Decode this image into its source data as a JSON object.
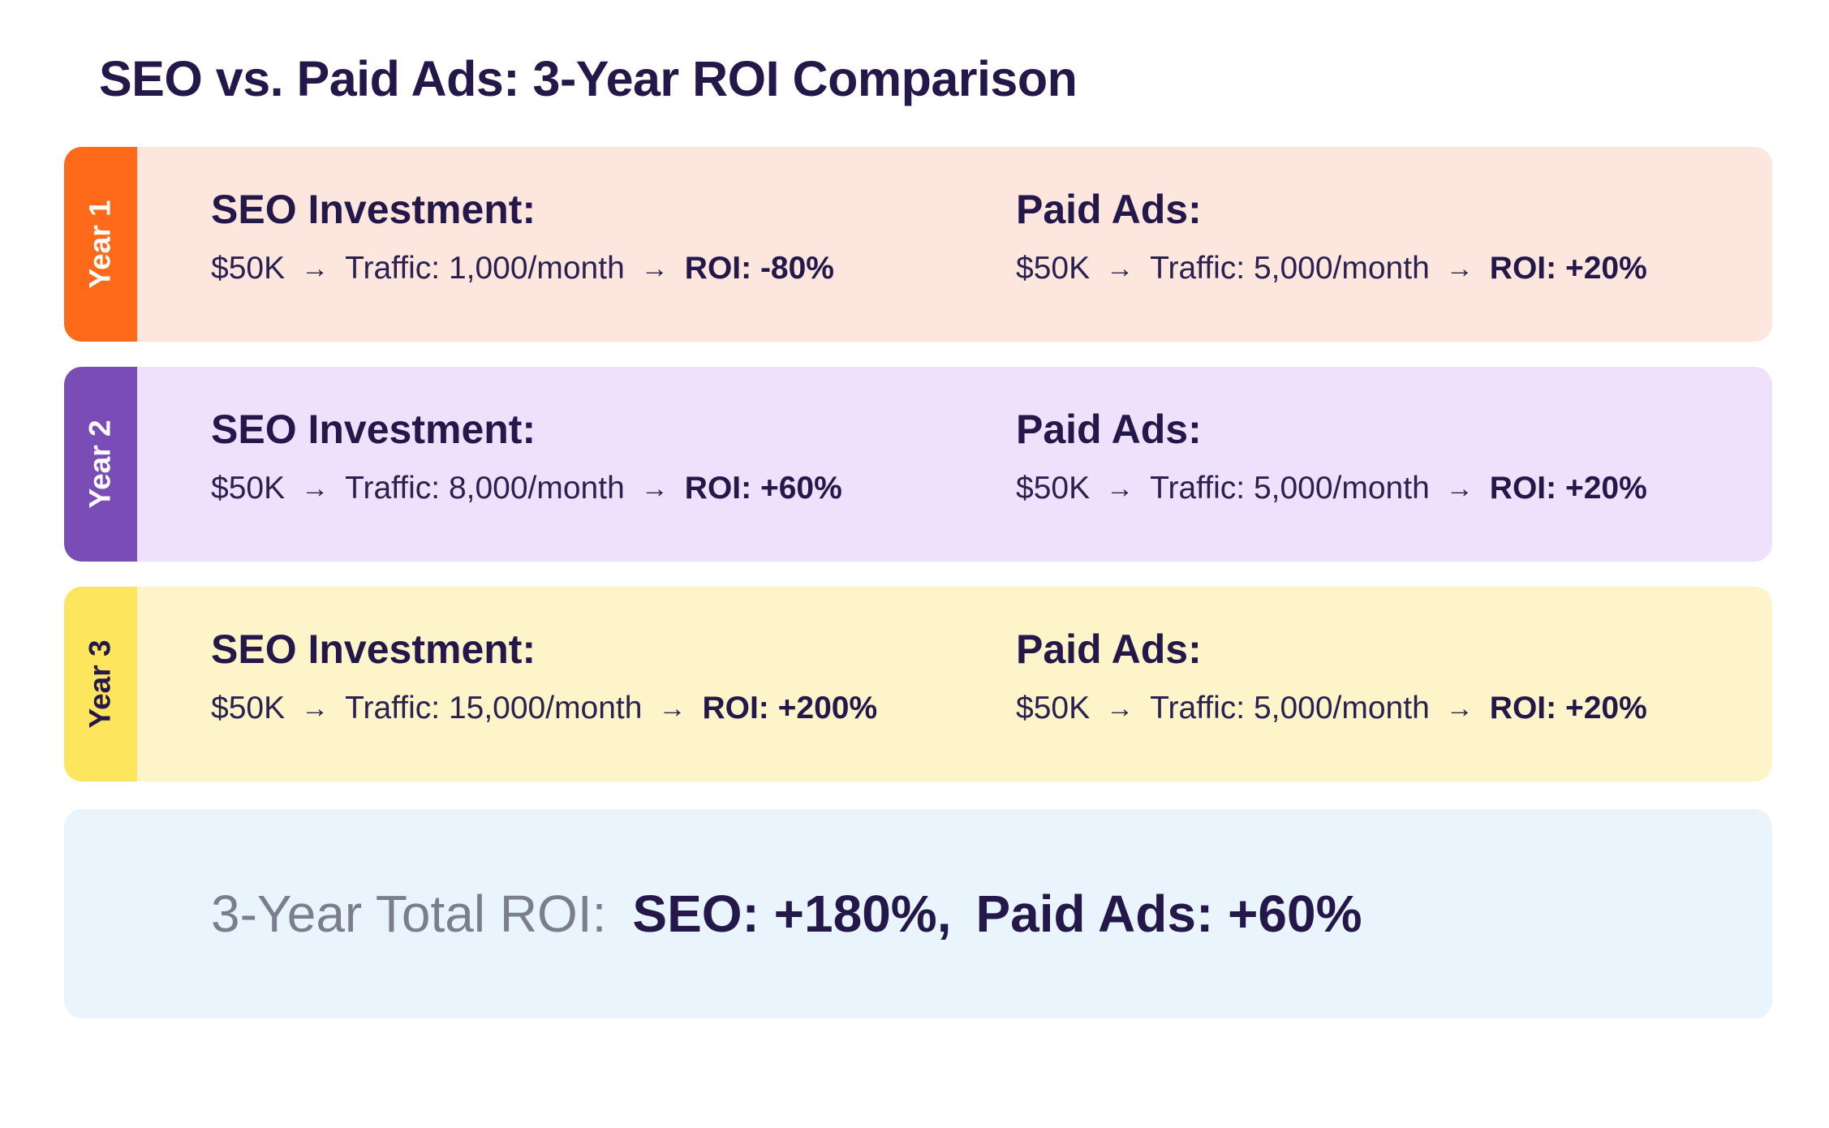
{
  "title": "SEO vs. Paid Ads: 3-Year ROI Comparison",
  "colors": {
    "year1_accent": "#ff6a1a",
    "year1_bg": "#fde6dd",
    "year2_accent": "#7a4cb6",
    "year2_bg": "#efe0fb",
    "year3_accent": "#fde55e",
    "year3_bg": "#fdf4c9",
    "total_bg": "#eaf4fd",
    "text": "#24184a"
  },
  "arrow_icon": "→",
  "years": [
    {
      "label": "Year 1",
      "seo": {
        "heading": "SEO Investment:",
        "investment": "$50K",
        "traffic": "Traffic: 1,000/month",
        "roi": "ROI: -80%"
      },
      "paid": {
        "heading": "Paid Ads:",
        "investment": "$50K",
        "traffic": "Traffic: 5,000/month",
        "roi": "ROI: +20%"
      }
    },
    {
      "label": "Year 2",
      "seo": {
        "heading": "SEO Investment:",
        "investment": "$50K",
        "traffic": "Traffic: 8,000/month",
        "roi": "ROI: +60%"
      },
      "paid": {
        "heading": "Paid Ads:",
        "investment": "$50K",
        "traffic": "Traffic: 5,000/month",
        "roi": "ROI: +20%"
      }
    },
    {
      "label": "Year 3",
      "seo": {
        "heading": "SEO Investment:",
        "investment": "$50K",
        "traffic": "Traffic: 15,000/month",
        "roi": "ROI: +200%"
      },
      "paid": {
        "heading": "Paid Ads:",
        "investment": "$50K",
        "traffic": "Traffic: 5,000/month",
        "roi": "ROI: +20%"
      }
    }
  ],
  "total": {
    "label": "3-Year Total ROI:",
    "seo": "SEO: +180%,",
    "paid": "Paid Ads: +60%"
  }
}
